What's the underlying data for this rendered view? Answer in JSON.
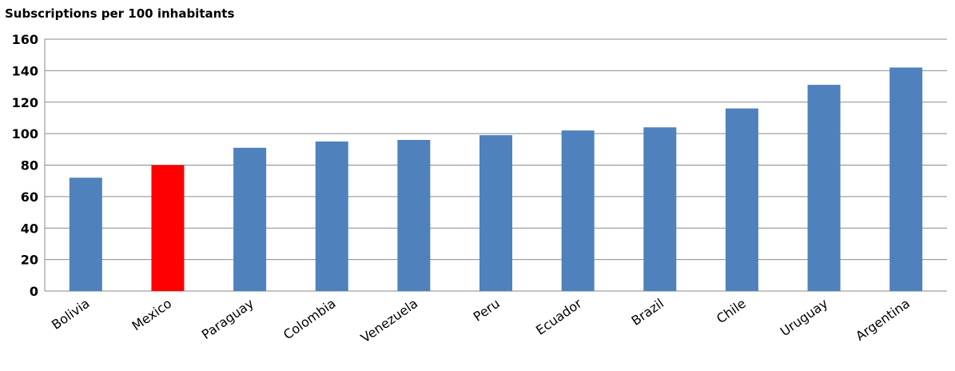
{
  "chart_data": {
    "type": "bar",
    "title": "",
    "ylabel": "Subscriptions per 100 inhabitants",
    "xlabel": "",
    "ylim": [
      0,
      160
    ],
    "yticks": [
      0,
      20,
      40,
      60,
      80,
      100,
      120,
      140,
      160
    ],
    "grid": true,
    "legend": "none",
    "categories": [
      "Bolivia",
      "Mexico",
      "Paraguay",
      "Colombia",
      "Venezuela",
      "Peru",
      "Ecuador",
      "Brazil",
      "Chile",
      "Uruguay",
      "Argentina"
    ],
    "values": [
      72,
      80,
      91,
      95,
      96,
      99,
      102,
      104,
      116,
      131,
      142
    ],
    "colors": {
      "default": "#4f81bd",
      "highlight": "#ff0000"
    },
    "highlight_category": "Mexico"
  }
}
